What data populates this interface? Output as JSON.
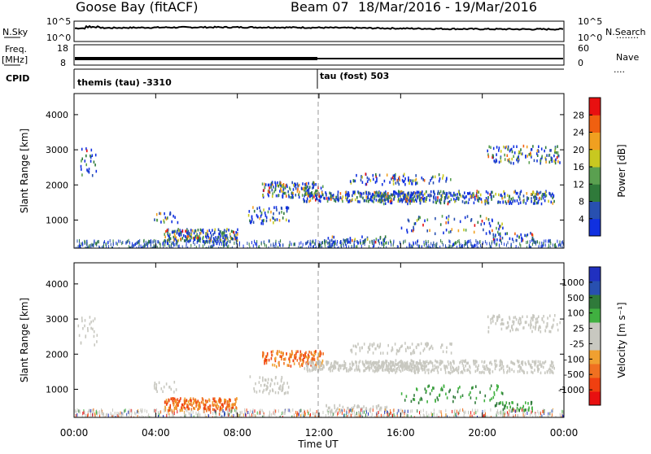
{
  "header": {
    "station": "Goose Bay (fitACF)",
    "beam": "Beam 07",
    "date_range": "18/Mar/2016 - 19/Mar/2016"
  },
  "left_labels": {
    "nsky": "N.Sky",
    "freq": "Freq.",
    "freq_unit": "[MHz]",
    "cpid": "CPID"
  },
  "right_labels": {
    "nsearch": "N.Search",
    "nave": "Nave"
  },
  "noise_panel": {
    "left_ticks": [
      "10^5",
      "10^0"
    ],
    "right_ticks": [
      "10^5",
      "10^0"
    ]
  },
  "freq_panel": {
    "left_ticks": [
      "18",
      "8"
    ],
    "right_ticks": [
      "60",
      "0"
    ]
  },
  "cpid_panel": {
    "left_text": "themis (tau) -3310",
    "right_text": "tau (fost) 503"
  },
  "colors": {
    "power": [
      "#1030e0",
      "#2850b0",
      "#2f7a3a",
      "#5aa050",
      "#c8c820",
      "#f0a020",
      "#f06010",
      "#e81010"
    ],
    "velocity": [
      "#e81010",
      "#f04010",
      "#f07020",
      "#f0a030",
      "#c8c8c0",
      "#c8c8c0",
      "#40b040",
      "#2f7a3a",
      "#2850b0",
      "#2030c0"
    ]
  },
  "chart_data": [
    {
      "type": "heatmap",
      "title": "",
      "xlabel": "",
      "ylabel": "Slant Range [km]",
      "x_ticks": [
        "00:00",
        "04:00",
        "08:00",
        "12:00",
        "16:00",
        "20:00",
        "00:00"
      ],
      "y_ticks": [
        1000,
        2000,
        3000,
        4000
      ],
      "ylim": [
        200,
        4600
      ],
      "colorbar": {
        "label": "Power [dB]",
        "ticks": [
          4,
          8,
          12,
          16,
          20,
          24,
          28
        ],
        "range": [
          0,
          32
        ]
      }
    },
    {
      "type": "heatmap",
      "title": "",
      "xlabel": "Time UT",
      "ylabel": "Slant Range [km]",
      "x_ticks": [
        "00:00",
        "04:00",
        "08:00",
        "12:00",
        "16:00",
        "20:00",
        "00:00"
      ],
      "y_ticks": [
        1000,
        2000,
        3000,
        4000
      ],
      "ylim": [
        200,
        4600
      ],
      "colorbar": {
        "label": "Velocity [m s⁻¹]",
        "ticks": [
          "1000",
          "500",
          "100",
          "25",
          "-25",
          "-100",
          "-500",
          "-1000"
        ]
      }
    }
  ]
}
